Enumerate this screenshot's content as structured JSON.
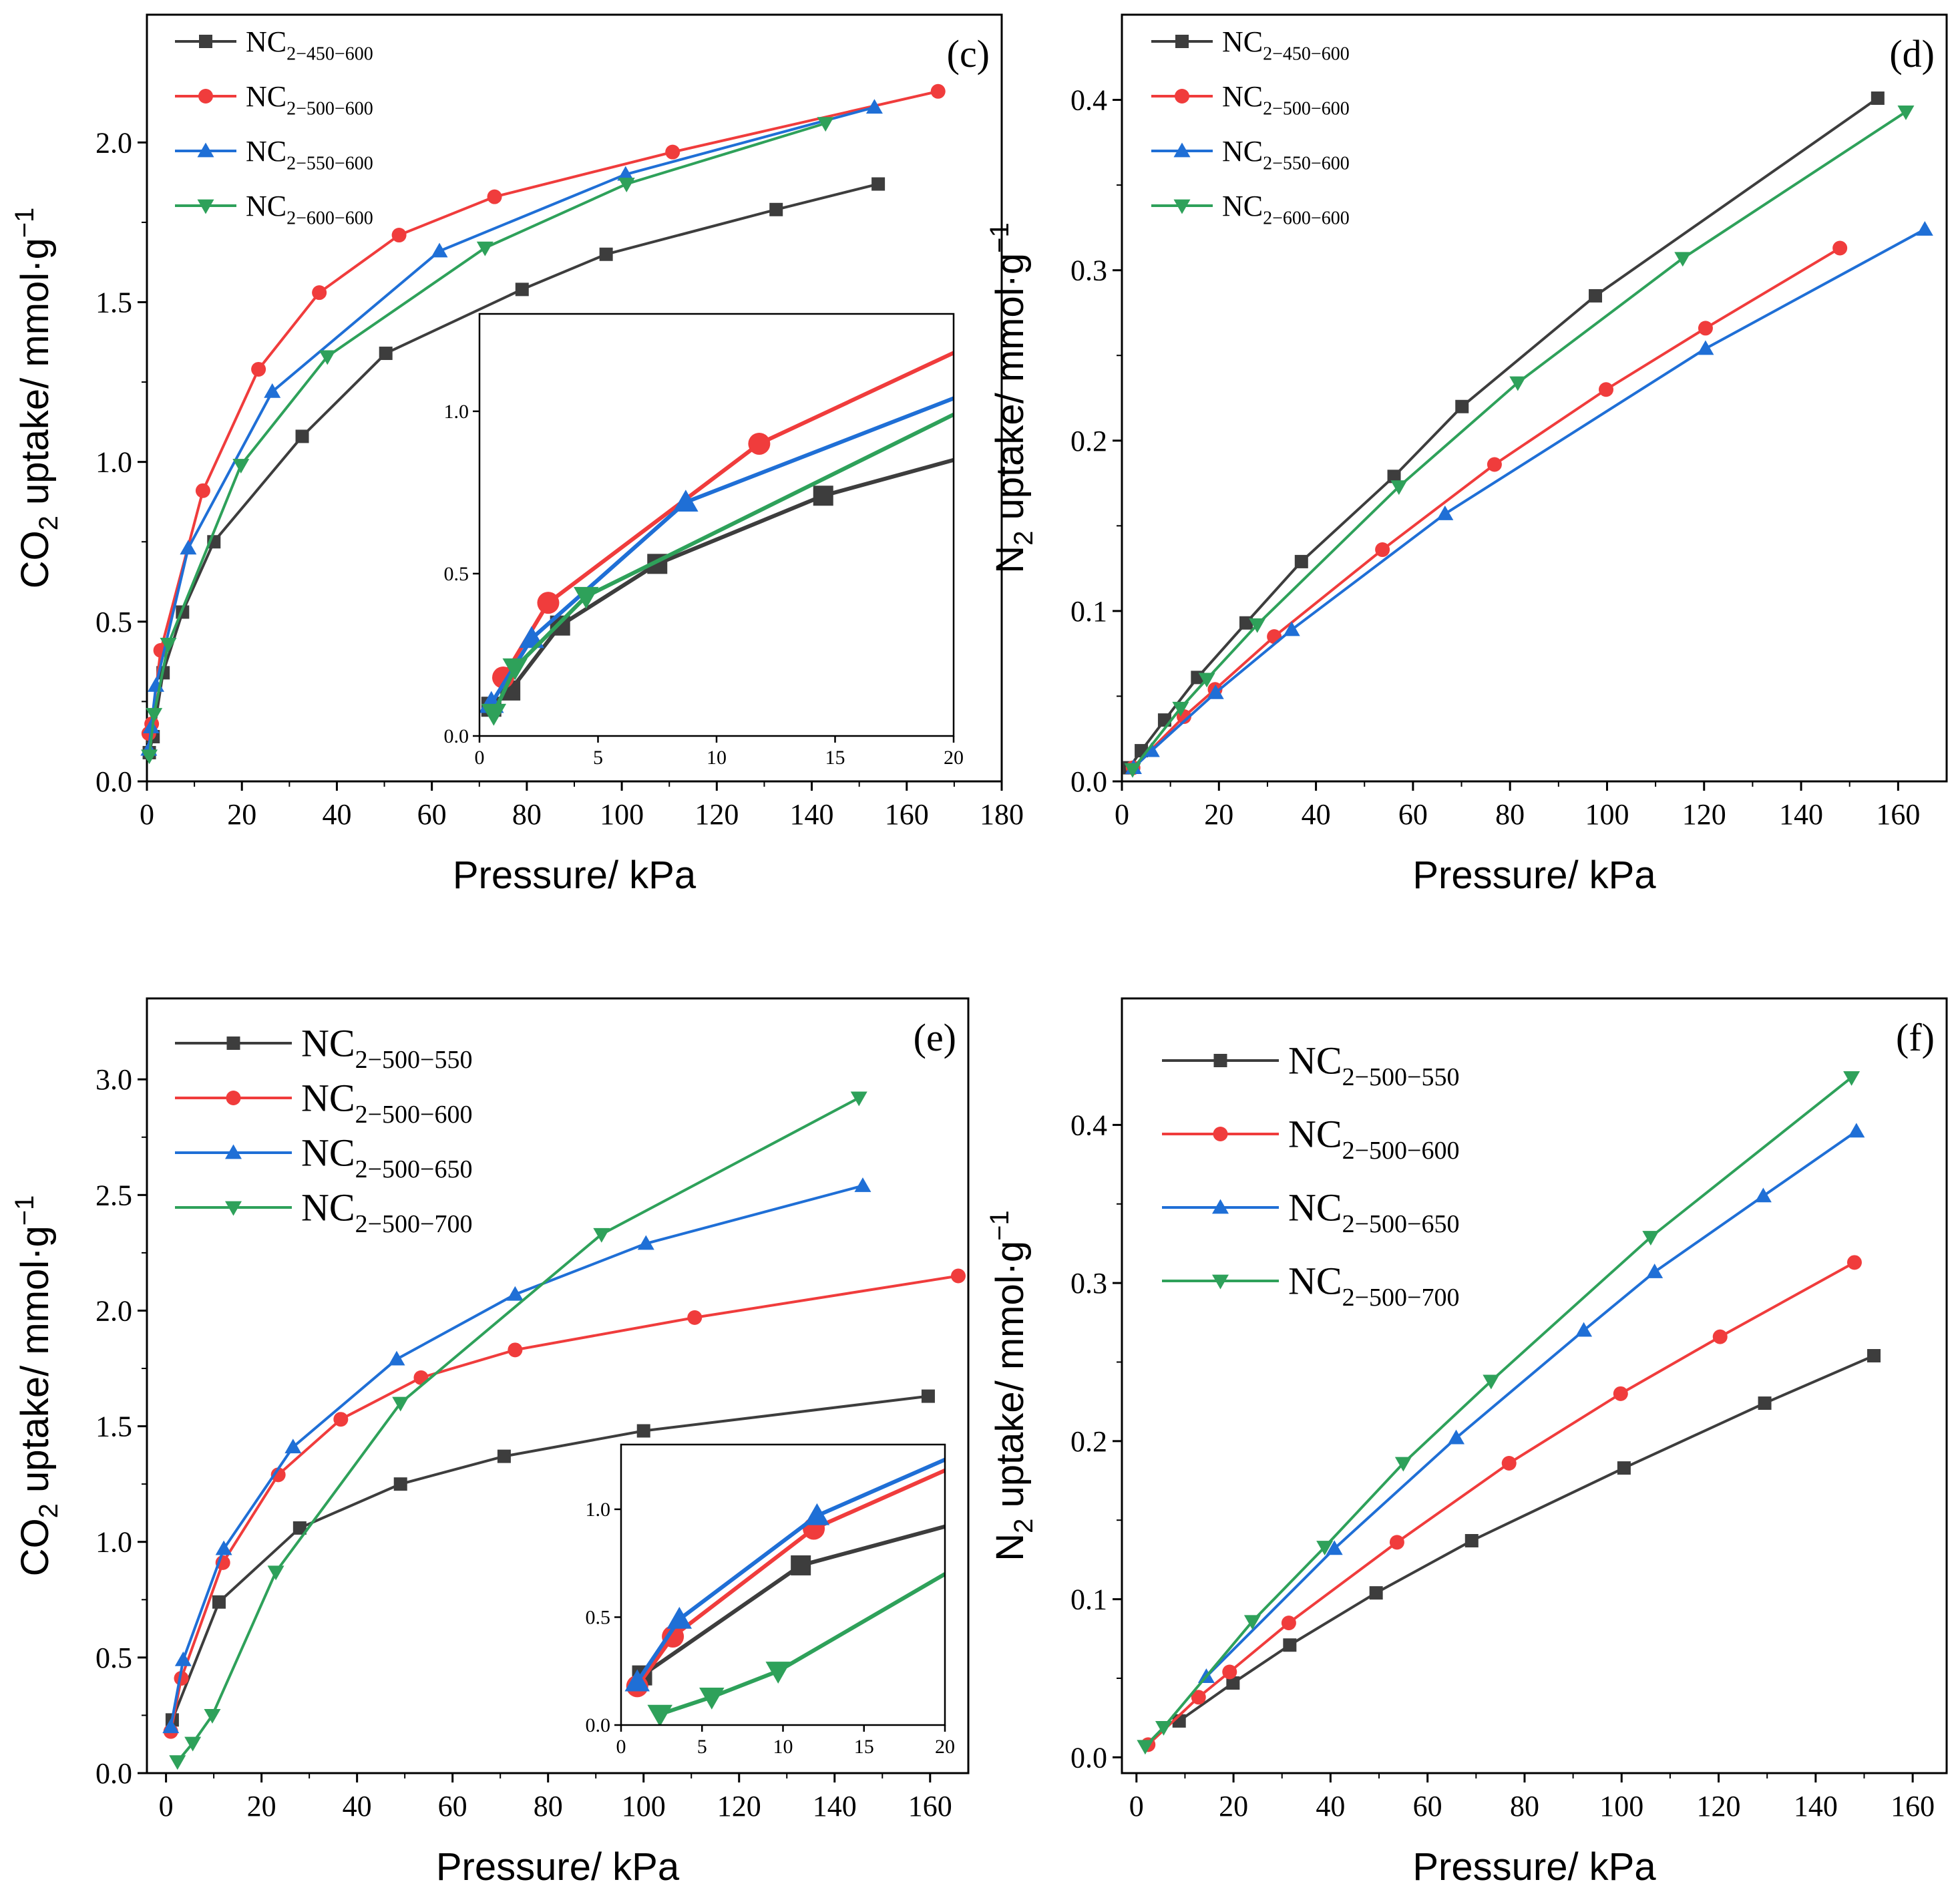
{
  "chart_data": [
    {
      "id": "c",
      "type": "line",
      "panel_label": "(c)",
      "xlabel": "Pressure/ kPa",
      "ylabel_main": "CO",
      "ylabel_sub": "2",
      "ylabel_rest": " uptake/ mmol·g",
      "ylabel_sup": "−1",
      "xlim": [
        0,
        180
      ],
      "ylim": [
        0,
        2.4
      ],
      "xticks": [
        0,
        20,
        40,
        60,
        80,
        100,
        120,
        140,
        160,
        180
      ],
      "yticks": [
        0.0,
        0.5,
        1.0,
        1.5,
        2.0
      ],
      "legend_position": "top-left",
      "series": [
        {
          "name": "NC",
          "sub": "2−450−600",
          "color": "#3d3d3d",
          "marker": "square",
          "x": [
            0.5,
            1.3,
            3.4,
            7.5,
            14.1,
            32.7,
            50.3,
            79.0,
            96.7,
            132.5,
            154.0
          ],
          "y": [
            0.09,
            0.14,
            0.34,
            0.53,
            0.75,
            1.08,
            1.34,
            1.54,
            1.65,
            1.79,
            1.87
          ]
        },
        {
          "name": "NC",
          "sub": "2−500−600",
          "color": "#f03c3c",
          "marker": "circle",
          "x": [
            0.4,
            1.0,
            2.9,
            11.8,
            23.5,
            36.3,
            53.1,
            73.2,
            110.7,
            166.6
          ],
          "y": [
            0.15,
            0.18,
            0.41,
            0.91,
            1.29,
            1.53,
            1.71,
            1.83,
            1.97,
            2.16
          ],
          "inset_x": [
            1.0,
            2.9,
            11.8,
            20.0
          ],
          "inset_y": [
            0.18,
            0.41,
            0.9,
            1.18
          ]
        },
        {
          "name": "NC",
          "sub": "2−550−600",
          "color": "#1f6fd6",
          "marker": "triangle-up",
          "x": [
            0.4,
            0.9,
            1.9,
            8.7,
            26.4,
            61.6,
            100.8,
            153.2
          ],
          "y": [
            0.1,
            0.17,
            0.3,
            0.73,
            1.22,
            1.66,
            1.9,
            2.11
          ],
          "inset_x": [
            0.5,
            2.2,
            8.7,
            20.0
          ],
          "inset_y": [
            0.1,
            0.3,
            0.72,
            1.04
          ]
        },
        {
          "name": "NC",
          "sub": "2−600−600",
          "color": "#2ea15a",
          "marker": "triangle-down",
          "x": [
            0.5,
            1.5,
            4.5,
            19.8,
            38.0,
            71.2,
            101.0,
            142.9
          ],
          "y": [
            0.08,
            0.21,
            0.43,
            0.99,
            1.33,
            1.67,
            1.87,
            2.06
          ],
          "inset_x": [
            0.6,
            1.5,
            4.5,
            20.0
          ],
          "inset_y": [
            0.07,
            0.21,
            0.43,
            0.99
          ]
        }
      ],
      "inset": {
        "xlim": [
          0,
          20
        ],
        "ylim": [
          0,
          1.3
        ],
        "xticks": [
          0,
          5,
          10,
          15,
          20
        ],
        "yticks": [
          0.0,
          0.5,
          1.0
        ],
        "series_x": [
          [
            0.5,
            1.3,
            3.4,
            7.5,
            14.5,
            20.0
          ],
          null,
          null,
          null
        ],
        "series_y": [
          [
            0.09,
            0.14,
            0.34,
            0.53,
            0.74,
            0.85
          ],
          null,
          null,
          null
        ]
      }
    },
    {
      "id": "d",
      "type": "line",
      "panel_label": "(d)",
      "xlabel": "Pressure/ kPa",
      "ylabel_main": "N",
      "ylabel_sub": "2",
      "ylabel_rest": " uptake/ mmol·g",
      "ylabel_sup": "−1",
      "xlim": [
        0,
        170
      ],
      "ylim": [
        0,
        0.45
      ],
      "xticks": [
        0,
        20,
        40,
        60,
        80,
        100,
        120,
        140,
        160
      ],
      "yticks": [
        0.0,
        0.1,
        0.2,
        0.3,
        0.4
      ],
      "legend_position": "top-left",
      "series": [
        {
          "name": "NC",
          "sub": "2−450−600",
          "color": "#3d3d3d",
          "marker": "square",
          "x": [
            1.5,
            4.0,
            8.8,
            15.6,
            25.6,
            37.0,
            56.1,
            70.1,
            97.6,
            155.8
          ],
          "y": [
            0.008,
            0.018,
            0.036,
            0.061,
            0.093,
            0.129,
            0.179,
            0.22,
            0.285,
            0.401
          ]
        },
        {
          "name": "NC",
          "sub": "2−500−600",
          "color": "#f03c3c",
          "marker": "circle",
          "x": [
            2.3,
            12.8,
            19.2,
            31.4,
            53.7,
            76.8,
            99.8,
            120.3,
            148.0
          ],
          "y": [
            0.008,
            0.038,
            0.054,
            0.085,
            0.136,
            0.186,
            0.23,
            0.266,
            0.313
          ]
        },
        {
          "name": "NC",
          "sub": "2−550−600",
          "color": "#1f6fd6",
          "marker": "triangle-up",
          "x": [
            2.4,
            6.1,
            19.3,
            35.0,
            66.6,
            120.3,
            165.5
          ],
          "y": [
            0.008,
            0.018,
            0.052,
            0.089,
            0.157,
            0.254,
            0.324
          ]
        },
        {
          "name": "NC",
          "sub": "2−600−600",
          "color": "#2ea15a",
          "marker": "triangle-down",
          "x": [
            2.2,
            12.1,
            17.5,
            27.9,
            57.1,
            81.6,
            115.6,
            161.6
          ],
          "y": [
            0.007,
            0.043,
            0.06,
            0.092,
            0.173,
            0.234,
            0.307,
            0.393
          ]
        }
      ]
    },
    {
      "id": "e",
      "type": "line",
      "panel_label": "(e)",
      "xlabel": "Pressure/ kPa",
      "ylabel_main": "CO",
      "ylabel_sub": "2",
      "ylabel_rest": " uptake/ mmol·g",
      "ylabel_sup": "−1",
      "xlim": [
        -4,
        168
      ],
      "ylim": [
        0,
        3.35
      ],
      "xticks": [
        0,
        20,
        40,
        60,
        80,
        100,
        120,
        140,
        160
      ],
      "yticks": [
        0.0,
        0.5,
        1.0,
        1.5,
        2.0,
        2.5,
        3.0
      ],
      "legend_position": "top-left",
      "series": [
        {
          "name": "NC",
          "sub": "2−500−550",
          "color": "#3d3d3d",
          "marker": "square",
          "x": [
            1.3,
            11.1,
            28.0,
            49.1,
            70.8,
            100.0,
            159.6
          ],
          "y": [
            0.23,
            0.74,
            1.06,
            1.25,
            1.37,
            1.48,
            1.63
          ],
          "inset_x": [
            1.3,
            11.1,
            20.0
          ],
          "inset_y": [
            0.23,
            0.74,
            0.92
          ]
        },
        {
          "name": "NC",
          "sub": "2−500−600",
          "color": "#f03c3c",
          "marker": "circle",
          "x": [
            1.0,
            3.2,
            11.9,
            23.5,
            36.6,
            53.4,
            73.1,
            110.7,
            165.9
          ],
          "y": [
            0.18,
            0.41,
            0.91,
            1.29,
            1.53,
            1.71,
            1.83,
            1.97,
            2.15
          ],
          "inset_x": [
            1.0,
            3.2,
            11.9,
            20.0
          ],
          "inset_y": [
            0.18,
            0.41,
            0.91,
            1.18
          ]
        },
        {
          "name": "NC",
          "sub": "2−500−650",
          "color": "#1f6fd6",
          "marker": "triangle-up",
          "x": [
            1.0,
            3.6,
            12.1,
            26.6,
            48.3,
            73.1,
            100.5,
            145.9
          ],
          "y": [
            0.2,
            0.49,
            0.97,
            1.41,
            1.79,
            2.07,
            2.29,
            2.54
          ],
          "inset_x": [
            1.0,
            3.6,
            12.1,
            20.0
          ],
          "inset_y": [
            0.2,
            0.49,
            0.97,
            1.23
          ]
        },
        {
          "name": "NC",
          "sub": "2−500−700",
          "color": "#2ea15a",
          "marker": "triangle-down",
          "x": [
            2.4,
            5.6,
            9.7,
            23.0,
            49.1,
            91.2,
            145.1
          ],
          "y": [
            0.05,
            0.13,
            0.25,
            0.87,
            1.6,
            2.33,
            2.92
          ],
          "inset_x": [
            2.4,
            5.6,
            9.7,
            20.0
          ],
          "inset_y": [
            0.05,
            0.13,
            0.25,
            0.7
          ]
        }
      ],
      "inset": {
        "xlim": [
          0,
          20
        ],
        "ylim": [
          0,
          1.3
        ],
        "xticks": [
          0,
          5,
          10,
          15,
          20
        ],
        "yticks": [
          0.0,
          0.5,
          1.0
        ]
      }
    },
    {
      "id": "f",
      "type": "line",
      "panel_label": "(f)",
      "xlabel": "Pressure/ kPa",
      "ylabel_main": "N",
      "ylabel_sub": "2",
      "ylabel_rest": " uptake/ mmol·g",
      "ylabel_sup": "−1",
      "xlim": [
        -3,
        167
      ],
      "ylim": [
        -0.01,
        0.48
      ],
      "xticks": [
        0,
        20,
        40,
        60,
        80,
        100,
        120,
        140,
        160
      ],
      "yticks": [
        0.0,
        0.1,
        0.2,
        0.3,
        0.4
      ],
      "legend_position": "top-left",
      "series": [
        {
          "name": "NC",
          "sub": "2−500−550",
          "color": "#3d3d3d",
          "marker": "square",
          "x": [
            8.8,
            19.9,
            31.6,
            49.4,
            69.1,
            100.5,
            129.5,
            152.0
          ],
          "y": [
            0.023,
            0.047,
            0.071,
            0.104,
            0.137,
            0.183,
            0.224,
            0.254
          ]
        },
        {
          "name": "NC",
          "sub": "2−500−600",
          "color": "#f03c3c",
          "marker": "circle",
          "x": [
            2.4,
            12.8,
            19.2,
            31.4,
            53.7,
            76.8,
            99.8,
            120.3,
            148.0
          ],
          "y": [
            0.008,
            0.038,
            0.054,
            0.085,
            0.136,
            0.186,
            0.23,
            0.266,
            0.313
          ]
        },
        {
          "name": "NC",
          "sub": "2−500−650",
          "color": "#1f6fd6",
          "marker": "triangle-up",
          "x": [
            14.4,
            40.8,
            65.9,
            92.2,
            106.8,
            129.2,
            148.4
          ],
          "y": [
            0.051,
            0.132,
            0.202,
            0.27,
            0.307,
            0.355,
            0.396
          ]
        },
        {
          "name": "NC",
          "sub": "2−500−700",
          "color": "#2ea15a",
          "marker": "triangle-down",
          "x": [
            1.8,
            5.6,
            23.9,
            38.8,
            55.0,
            73.1,
            106.0,
            147.4
          ],
          "y": [
            0.007,
            0.019,
            0.086,
            0.133,
            0.186,
            0.238,
            0.329,
            0.43
          ]
        }
      ]
    }
  ]
}
